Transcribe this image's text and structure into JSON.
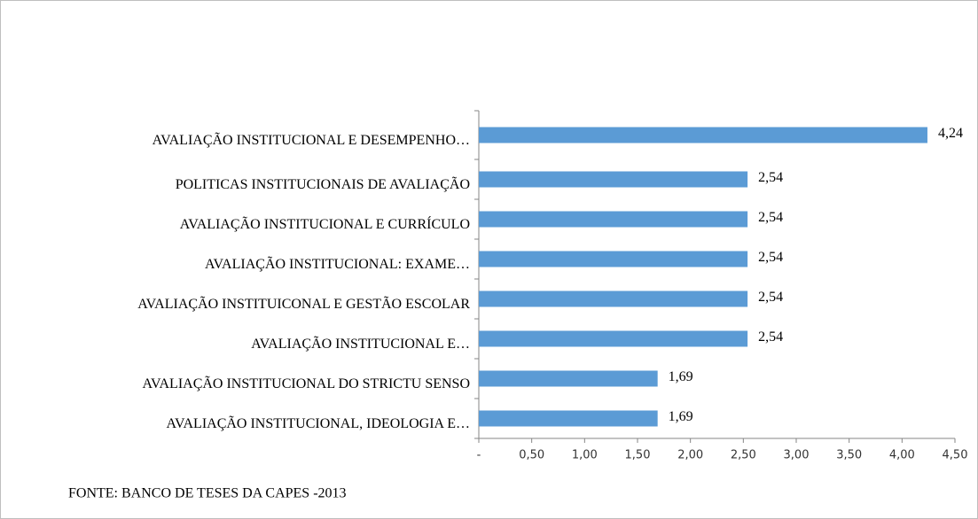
{
  "chart_data": {
    "type": "bar",
    "orientation": "horizontal",
    "categories": [
      "AVALIAÇÃO INSTITUCIONAL E DESEMPENHO…",
      "POLITICAS INSTITUCIONAIS DE AVALIAÇÃO",
      "AVALIAÇÃO INSTITUCIONAL E CURRÍCULO",
      "AVALIAÇÃO INSTITUCIONAL: EXAME…",
      "AVALIAÇÃO INSTITUICONAL E GESTÃO ESCOLAR",
      "AVALIAÇÃO INSTITUCIONAL E…",
      "AVALIAÇÃO INSTITUCIONAL DO STRICTU SENSO",
      "AVALIAÇÃO INSTITUCIONAL, IDEOLOGIA E…"
    ],
    "values": [
      4.24,
      2.54,
      2.54,
      2.54,
      2.54,
      2.54,
      1.69,
      1.69
    ],
    "value_labels": [
      "4,24",
      "2,54",
      "2,54",
      "2,54",
      "2,54",
      "2,54",
      "1,69",
      "1,69"
    ],
    "color": "#5b9bd5",
    "xlim": [
      0,
      4.5
    ],
    "xticks": [
      {
        "value": 0,
        "label": "-"
      },
      {
        "value": 0.5,
        "label": "0,50"
      },
      {
        "value": 1,
        "label": "1,00"
      },
      {
        "value": 1.5,
        "label": "1,50"
      },
      {
        "value": 2,
        "label": "2,00"
      },
      {
        "value": 2.5,
        "label": "2,50"
      },
      {
        "value": 3,
        "label": "3,00"
      },
      {
        "value": 3.5,
        "label": "3,50"
      },
      {
        "value": 4,
        "label": "4,00"
      },
      {
        "value": 4.5,
        "label": "4,50"
      }
    ],
    "source": "FONTE: BANCO DE TESES DA CAPES -2013"
  }
}
